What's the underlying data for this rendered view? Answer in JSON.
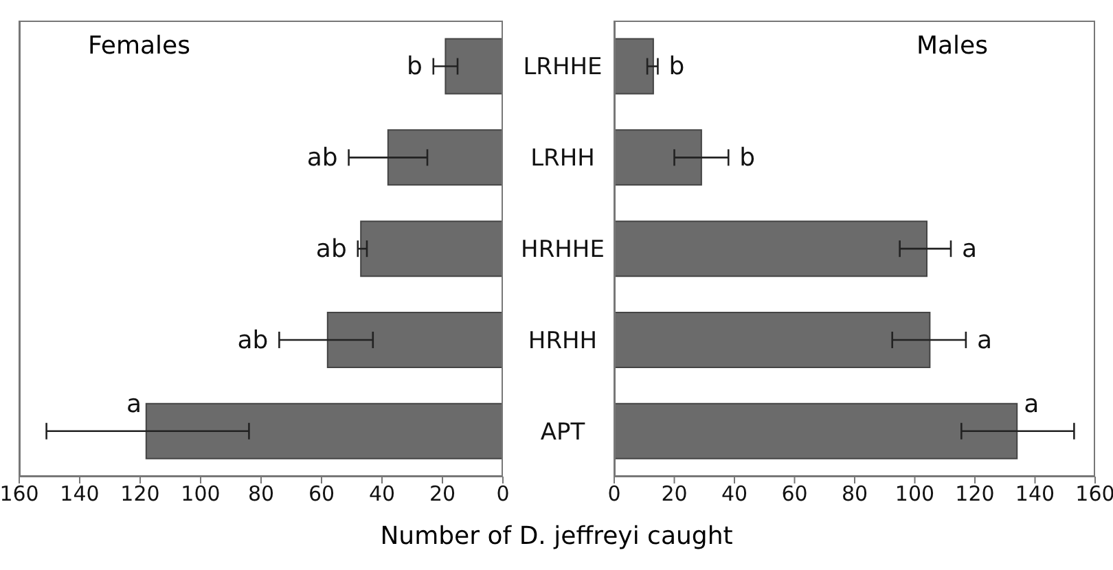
{
  "chart_data": [
    {
      "type": "bar",
      "orientation": "horizontal",
      "title": "Females",
      "categories": [
        null,
        null,
        null,
        null,
        null
      ],
      "series": [
        {
          "color": "#6b6b6b",
          "values": [
            19,
            38,
            47,
            58,
            118
          ],
          "errors": [
            [
              15,
              23
            ],
            [
              25,
              51
            ],
            [
              45,
              48
            ],
            [
              43,
              74
            ],
            [
              84,
              151
            ]
          ]
        }
      ],
      "xlim": [
        160,
        0
      ],
      "xticks": [
        160,
        140,
        120,
        100,
        80,
        60,
        40,
        20,
        0
      ],
      "tick_labels": "x",
      "grid": false,
      "legend": false,
      "annotations": [
        "b",
        "ab",
        "ab",
        "ab",
        "a"
      ]
    },
    {
      "type": "bar",
      "orientation": "horizontal",
      "title": "Males",
      "xlabel": "Number of D. jeffreyi caught",
      "categories": [
        "LRHHE",
        "LRHH",
        "HRHHE",
        "HRHH",
        "APT"
      ],
      "series": [
        {
          "color": "#6b6b6b",
          "values": [
            13,
            29,
            104,
            105,
            134
          ],
          "errors": [
            [
              11,
              14.5
            ],
            [
              20,
              38
            ],
            [
              95,
              112
            ],
            [
              92.5,
              117
            ],
            [
              115.5,
              153
            ]
          ]
        }
      ],
      "xlim": [
        0,
        160
      ],
      "xticks": [
        0,
        20,
        40,
        60,
        80,
        100,
        120,
        140,
        160
      ],
      "grid": false,
      "legend": false,
      "annotations": [
        "b",
        "b",
        "a",
        "a",
        "a"
      ]
    }
  ]
}
